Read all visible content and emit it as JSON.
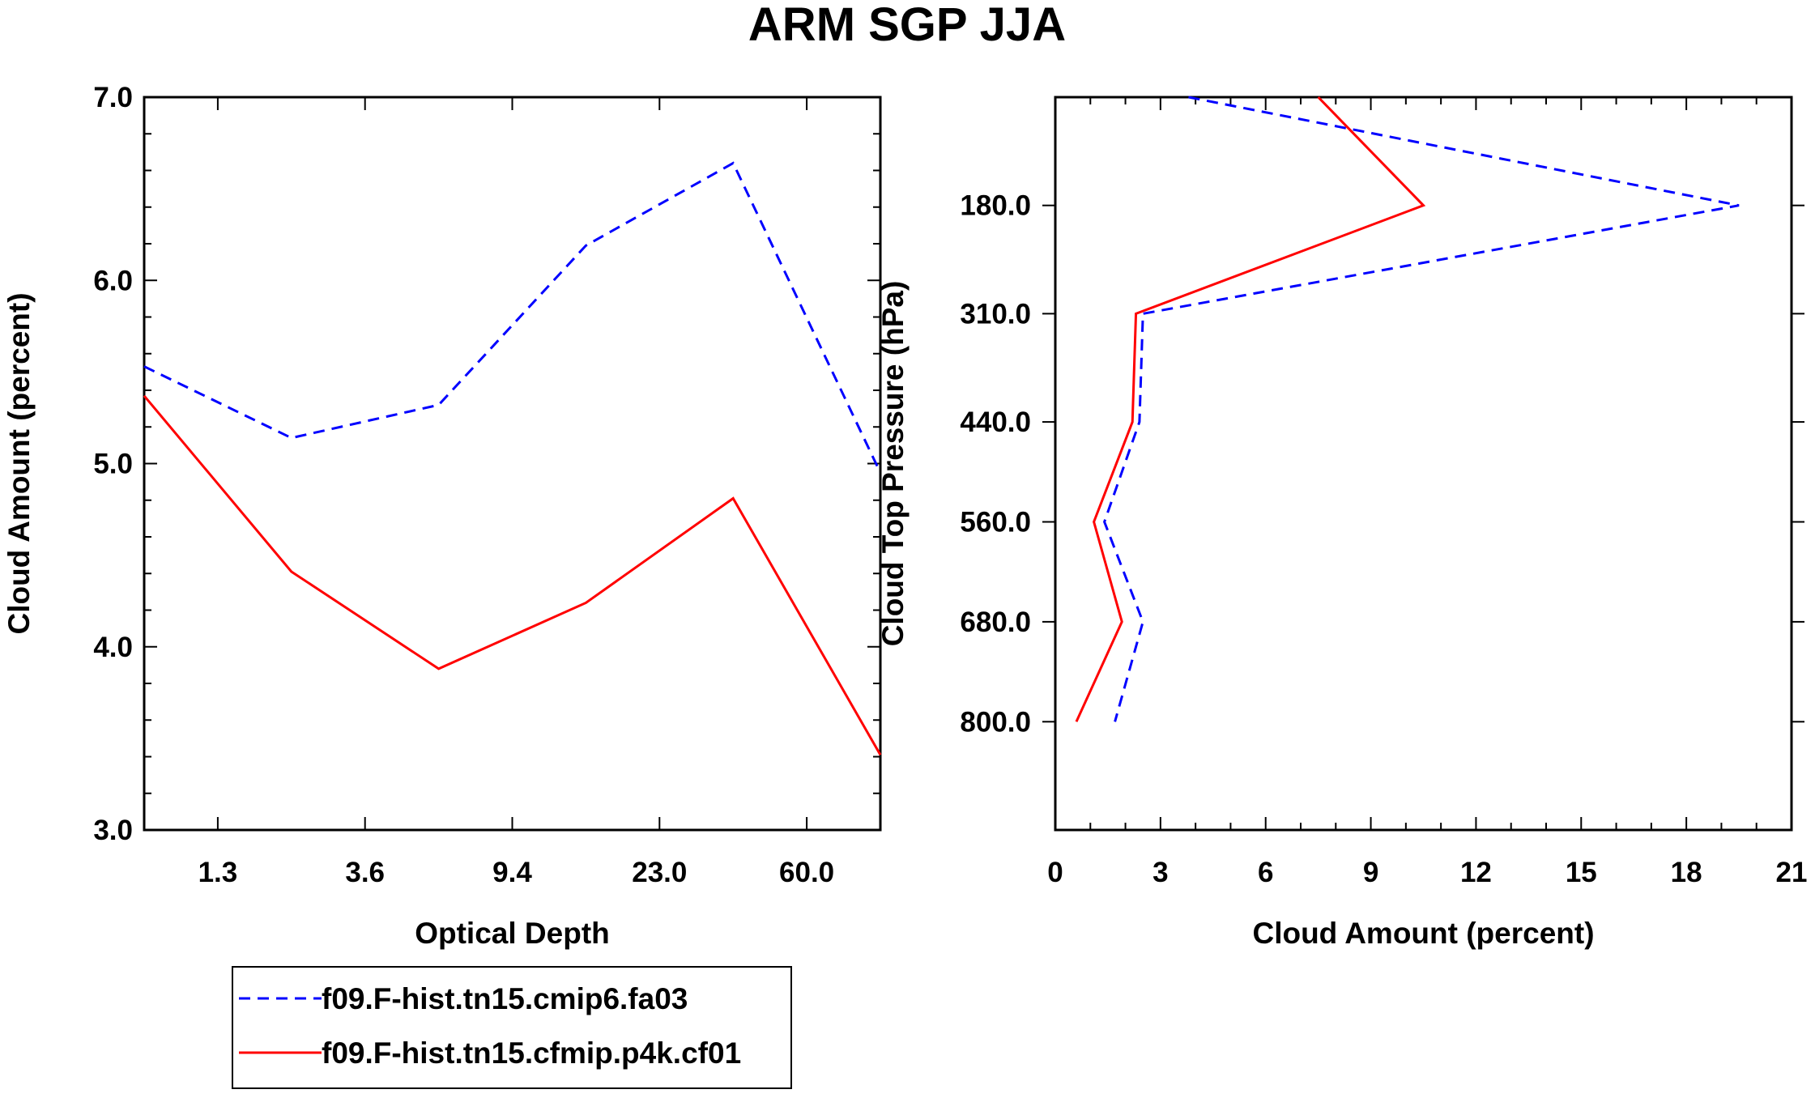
{
  "title": "ARM SGP JJA",
  "colors": {
    "series1": "#0000ff",
    "series2": "#ff0000",
    "axis": "#000000"
  },
  "legend": {
    "entries": [
      {
        "label": "f09.F-hist.tn15.cmip6.fa03",
        "color": "#0000ff",
        "style": "dashed"
      },
      {
        "label": "f09.F-hist.tn15.cfmip.p4k.cf01",
        "color": "#ff0000",
        "style": "solid"
      }
    ]
  },
  "chart_data": [
    {
      "type": "line",
      "xlabel": "Optical Depth",
      "ylabel": "Cloud Amount (percent)",
      "x_index": [
        0,
        1,
        2,
        3,
        4,
        5
      ],
      "xlim": [
        0,
        5
      ],
      "xticks": [
        {
          "pos": 0.5,
          "label": "1.3"
        },
        {
          "pos": 1.5,
          "label": "3.6"
        },
        {
          "pos": 2.5,
          "label": "9.4"
        },
        {
          "pos": 3.5,
          "label": "23.0"
        },
        {
          "pos": 4.5,
          "label": "60.0"
        }
      ],
      "ylim": [
        3.0,
        7.0
      ],
      "yticks": [
        "3.0",
        "4.0",
        "5.0",
        "6.0",
        "7.0"
      ],
      "series": [
        {
          "name": "f09.F-hist.tn15.cmip6.fa03",
          "style": "dashed",
          "values": [
            5.53,
            5.14,
            5.32,
            6.19,
            6.64,
            4.95
          ]
        },
        {
          "name": "f09.F-hist.tn15.cfmip.p4k.cf01",
          "style": "solid",
          "values": [
            5.37,
            4.41,
            3.88,
            4.24,
            4.81,
            3.41
          ]
        }
      ]
    },
    {
      "type": "line",
      "xlabel": "Cloud Amount (percent)",
      "ylabel": "Cloud Top Pressure (hPa)",
      "xlim": [
        0,
        21
      ],
      "xticks": [
        "0",
        "3",
        "6",
        "9",
        "12",
        "15",
        "18",
        "21"
      ],
      "ylim": [
        50,
        930
      ],
      "yticks": [
        "180.0",
        "310.0",
        "440.0",
        "560.0",
        "680.0",
        "800.0"
      ],
      "pressure_levels": [
        50,
        180,
        310,
        440,
        560,
        680,
        800,
        930
      ],
      "series": [
        {
          "name": "f09.F-hist.tn15.cmip6.fa03",
          "style": "dashed",
          "values": [
            3.8,
            19.5,
            2.5,
            2.4,
            1.4,
            2.5,
            1.7
          ]
        },
        {
          "name": "f09.F-hist.tn15.cfmip.p4k.cf01",
          "style": "solid",
          "values": [
            7.5,
            10.5,
            2.3,
            2.2,
            1.1,
            1.9,
            0.6
          ]
        }
      ]
    }
  ]
}
